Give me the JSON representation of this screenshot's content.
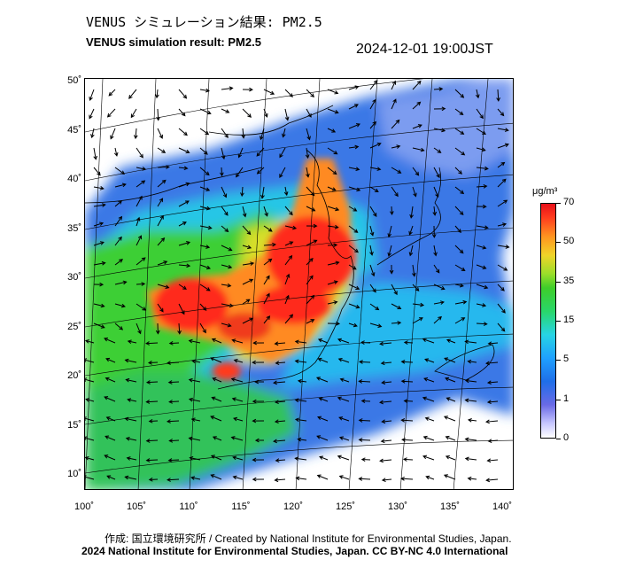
{
  "title_jp": "VENUS シミュレーション結果: PM2.5",
  "title_en": "VENUS simulation result: PM2.5",
  "timestamp": "2024-12-01 19:00JST",
  "lat_labels": [
    "50˚",
    "45˚",
    "40˚",
    "35˚",
    "30˚",
    "25˚",
    "20˚",
    "15˚",
    "10˚"
  ],
  "lon_labels": [
    "100˚",
    "105˚",
    "110˚",
    "115˚",
    "120˚",
    "125˚",
    "130˚",
    "135˚",
    "140˚"
  ],
  "colorbar": {
    "unit": "μg/m³",
    "ticks": [
      "70",
      "50",
      "35",
      "15",
      "5",
      "1",
      "0"
    ],
    "colors": {
      "high": "#e8101a",
      "orange": "#ff9420",
      "yellow": "#f0d428",
      "green": "#3ece2a",
      "cyan": "#27d4e4",
      "blue": "#1f6ee8",
      "low": "#c8c8ff"
    }
  },
  "credit_jp": "作成: 国立環境研究所 / Created by National Institute for Environmental Studies, Japan.",
  "credit_copyright": "2024 National Institute for Environmental Studies, Japan. CC BY-NC 4.0 International"
}
